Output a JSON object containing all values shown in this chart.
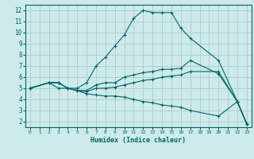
{
  "xlabel": "Humidex (Indice chaleur)",
  "background_color": "#ceeaea",
  "grid_color": "#aacccc",
  "line_color": "#006666",
  "xlim": [
    -0.5,
    23.5
  ],
  "ylim": [
    1.5,
    12.5
  ],
  "xticks": [
    0,
    1,
    2,
    3,
    4,
    5,
    6,
    7,
    8,
    9,
    10,
    11,
    12,
    13,
    14,
    15,
    16,
    17,
    18,
    19,
    20,
    21,
    22,
    23
  ],
  "yticks": [
    2,
    3,
    4,
    5,
    6,
    7,
    8,
    9,
    10,
    11,
    12
  ],
  "series": [
    {
      "x": [
        0,
        2,
        3,
        4,
        5,
        6,
        7,
        8,
        9,
        10,
        11,
        12,
        13,
        14,
        15,
        16,
        17,
        20,
        22,
        23
      ],
      "y": [
        5.0,
        5.5,
        5.0,
        5.0,
        5.0,
        5.5,
        7.0,
        7.8,
        8.8,
        9.8,
        11.3,
        12.0,
        11.8,
        11.8,
        11.8,
        10.4,
        9.5,
        7.5,
        3.8,
        1.8
      ]
    },
    {
      "x": [
        0,
        2,
        3,
        4,
        5,
        6,
        7,
        8,
        9,
        10,
        11,
        12,
        13,
        14,
        15,
        16,
        17,
        20,
        22,
        23
      ],
      "y": [
        5.0,
        5.5,
        5.5,
        5.0,
        4.8,
        4.8,
        5.3,
        5.5,
        5.5,
        6.0,
        6.2,
        6.4,
        6.5,
        6.7,
        6.7,
        6.8,
        7.5,
        6.3,
        3.8,
        1.8
      ]
    },
    {
      "x": [
        0,
        2,
        3,
        4,
        5,
        6,
        7,
        8,
        9,
        10,
        11,
        12,
        13,
        14,
        15,
        16,
        17,
        20,
        22,
        23
      ],
      "y": [
        5.0,
        5.5,
        5.5,
        5.0,
        4.8,
        4.7,
        5.0,
        5.0,
        5.1,
        5.3,
        5.5,
        5.7,
        5.8,
        6.0,
        6.1,
        6.2,
        6.5,
        6.5,
        3.8,
        1.8
      ]
    },
    {
      "x": [
        0,
        2,
        3,
        4,
        5,
        6,
        7,
        8,
        9,
        10,
        11,
        12,
        13,
        14,
        15,
        16,
        17,
        20,
        22,
        23
      ],
      "y": [
        5.0,
        5.5,
        5.5,
        5.0,
        4.8,
        4.5,
        4.4,
        4.3,
        4.3,
        4.2,
        4.0,
        3.8,
        3.7,
        3.5,
        3.4,
        3.3,
        3.0,
        2.5,
        3.8,
        1.8
      ]
    }
  ]
}
